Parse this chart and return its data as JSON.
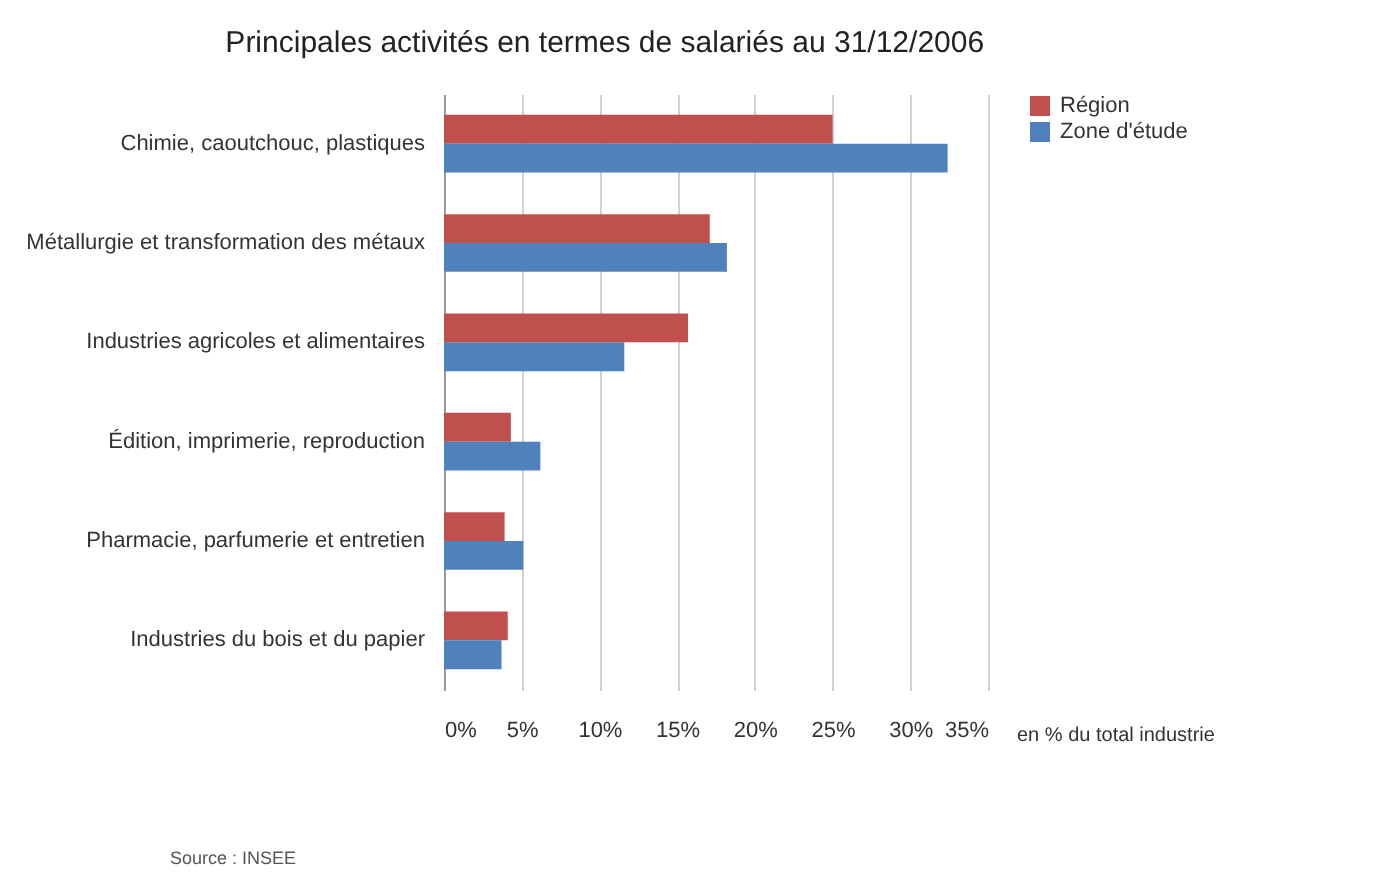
{
  "chart_data": {
    "type": "bar",
    "orientation": "horizontal",
    "title": "Principales activités en termes de salariés au 31/12/2006",
    "categories": [
      "Chimie, caoutchouc, plastiques",
      "Métallurgie et transformation des métaux",
      "Industries agricoles et alimentaires",
      "Édition, imprimerie, reproduction",
      "Pharmacie, parfumerie et entretien",
      "Industries du bois et du papier"
    ],
    "series": [
      {
        "name": "Région",
        "color": "#c0504d",
        "values": [
          25.0,
          17.1,
          15.7,
          4.3,
          3.9,
          4.1
        ]
      },
      {
        "name": "Zone d'étude",
        "color": "#4f81bd",
        "values": [
          32.4,
          18.2,
          11.6,
          6.2,
          5.1,
          3.7
        ]
      }
    ],
    "xlim": [
      0,
      35
    ],
    "xticks": [
      {
        "value": 0,
        "label": "0%"
      },
      {
        "value": 5,
        "label": "5%"
      },
      {
        "value": 10,
        "label": "10%"
      },
      {
        "value": 15,
        "label": "15%"
      },
      {
        "value": 20,
        "label": "20%"
      },
      {
        "value": 25,
        "label": "25%"
      },
      {
        "value": 30,
        "label": "30%"
      },
      {
        "value": 35,
        "label": "35%"
      }
    ],
    "xlabel": "en % du total industrie",
    "grid": "x",
    "legend": "right",
    "annotations": [
      "Source : INSEE"
    ]
  }
}
